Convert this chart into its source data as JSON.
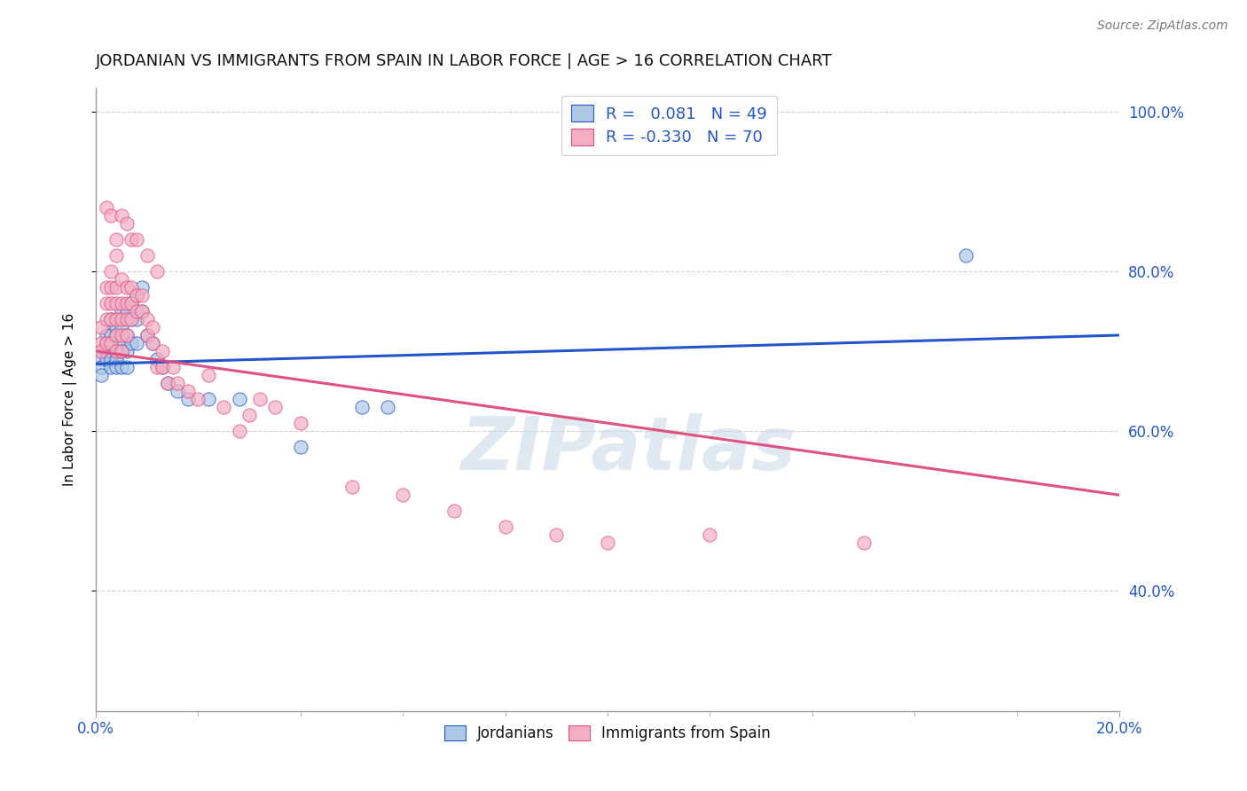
{
  "title": "JORDANIAN VS IMMIGRANTS FROM SPAIN IN LABOR FORCE | AGE > 16 CORRELATION CHART",
  "source": "Source: ZipAtlas.com",
  "ylabel": "In Labor Force | Age > 16",
  "xlim": [
    0.0,
    0.2
  ],
  "ylim": [
    0.25,
    1.03
  ],
  "ytick_labels": [
    "40.0%",
    "60.0%",
    "80.0%",
    "100.0%"
  ],
  "ytick_vals": [
    0.4,
    0.6,
    0.8,
    1.0
  ],
  "legend_entries": [
    {
      "label": "R =   0.081   N = 49",
      "color": "#adc8e6"
    },
    {
      "label": "R = -0.330   N = 70",
      "color": "#f4afc3"
    }
  ],
  "legend_r_color": "#2255cc",
  "watermark": "ZIPatlas",
  "blue_scatter_x": [
    0.001,
    0.001,
    0.001,
    0.002,
    0.002,
    0.002,
    0.002,
    0.003,
    0.003,
    0.003,
    0.003,
    0.003,
    0.003,
    0.004,
    0.004,
    0.004,
    0.004,
    0.004,
    0.004,
    0.005,
    0.005,
    0.005,
    0.005,
    0.005,
    0.006,
    0.006,
    0.006,
    0.006,
    0.007,
    0.007,
    0.007,
    0.008,
    0.008,
    0.008,
    0.009,
    0.009,
    0.01,
    0.011,
    0.012,
    0.013,
    0.014,
    0.016,
    0.018,
    0.022,
    0.028,
    0.04,
    0.052,
    0.057,
    0.17
  ],
  "blue_scatter_y": [
    0.69,
    0.68,
    0.67,
    0.72,
    0.71,
    0.7,
    0.69,
    0.74,
    0.72,
    0.71,
    0.7,
    0.69,
    0.68,
    0.74,
    0.73,
    0.72,
    0.7,
    0.69,
    0.68,
    0.75,
    0.73,
    0.71,
    0.7,
    0.68,
    0.75,
    0.72,
    0.7,
    0.68,
    0.76,
    0.74,
    0.71,
    0.77,
    0.74,
    0.71,
    0.78,
    0.75,
    0.72,
    0.71,
    0.69,
    0.68,
    0.66,
    0.65,
    0.64,
    0.64,
    0.64,
    0.58,
    0.63,
    0.63,
    0.82
  ],
  "blue_line_x": [
    0.0,
    0.2
  ],
  "blue_line_y": [
    0.684,
    0.72
  ],
  "pink_scatter_x": [
    0.001,
    0.001,
    0.001,
    0.002,
    0.002,
    0.002,
    0.002,
    0.003,
    0.003,
    0.003,
    0.003,
    0.003,
    0.004,
    0.004,
    0.004,
    0.004,
    0.004,
    0.005,
    0.005,
    0.005,
    0.005,
    0.005,
    0.006,
    0.006,
    0.006,
    0.006,
    0.007,
    0.007,
    0.007,
    0.008,
    0.008,
    0.009,
    0.009,
    0.01,
    0.01,
    0.011,
    0.011,
    0.012,
    0.013,
    0.013,
    0.014,
    0.015,
    0.016,
    0.018,
    0.02,
    0.022,
    0.025,
    0.028,
    0.03,
    0.032,
    0.035,
    0.04,
    0.05,
    0.06,
    0.07,
    0.08,
    0.09,
    0.1,
    0.12,
    0.15,
    0.002,
    0.003,
    0.004,
    0.004,
    0.005,
    0.006,
    0.007,
    0.008,
    0.01,
    0.012
  ],
  "pink_scatter_y": [
    0.73,
    0.71,
    0.7,
    0.78,
    0.76,
    0.74,
    0.71,
    0.8,
    0.78,
    0.76,
    0.74,
    0.71,
    0.78,
    0.76,
    0.74,
    0.72,
    0.7,
    0.79,
    0.76,
    0.74,
    0.72,
    0.7,
    0.78,
    0.76,
    0.74,
    0.72,
    0.78,
    0.76,
    0.74,
    0.77,
    0.75,
    0.77,
    0.75,
    0.74,
    0.72,
    0.73,
    0.71,
    0.68,
    0.7,
    0.68,
    0.66,
    0.68,
    0.66,
    0.65,
    0.64,
    0.67,
    0.63,
    0.6,
    0.62,
    0.64,
    0.63,
    0.61,
    0.53,
    0.52,
    0.5,
    0.48,
    0.47,
    0.46,
    0.47,
    0.46,
    0.88,
    0.87,
    0.84,
    0.82,
    0.87,
    0.86,
    0.84,
    0.84,
    0.82,
    0.8
  ],
  "pink_line_x": [
    0.0,
    0.2
  ],
  "pink_line_y": [
    0.7,
    0.52
  ],
  "blue_color": "#adc8e6",
  "pink_color": "#f4afc3",
  "blue_line_color": "#2255cc",
  "pink_line_color": "#e05080",
  "grid_color": "#d0d0d0",
  "background_color": "#ffffff",
  "title_fontsize": 13,
  "axis_label_fontsize": 11,
  "tick_label_color": "#2255cc",
  "source_fontsize": 10
}
